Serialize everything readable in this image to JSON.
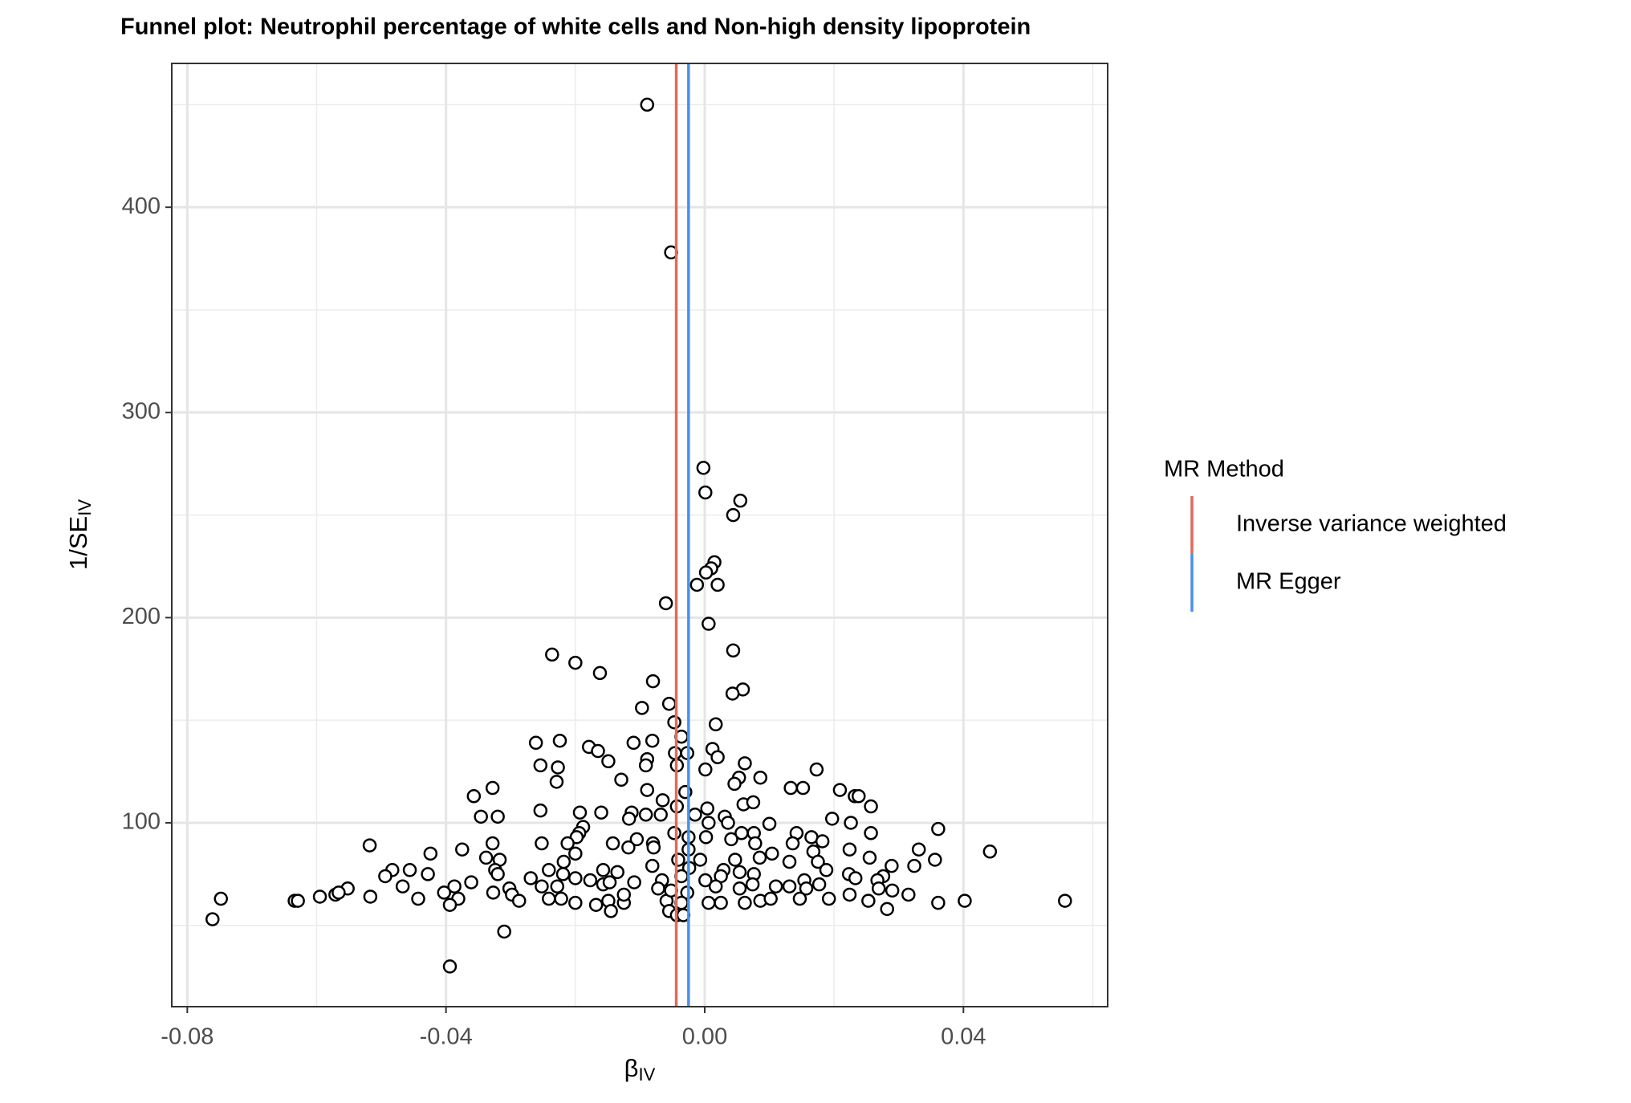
{
  "chart_data": {
    "type": "scatter",
    "title": "Funnel plot: Neutrophil percentage of white cells and Non-high density lipoprotein",
    "xlabel": {
      "text": "β",
      "sub": "IV"
    },
    "ylabel": {
      "text": "1/SE",
      "sub": "IV"
    },
    "xlim": [
      -0.0824,
      0.0623
    ],
    "ylim": [
      10.4,
      470.1
    ],
    "xticks": [
      -0.08,
      -0.04,
      {
        "value": 0,
        "label": "0.00"
      },
      0.04
    ],
    "yticks": [
      100,
      200,
      300,
      400
    ],
    "x_minor_grid": [
      -0.06,
      -0.02,
      0.02,
      0.06
    ],
    "y_minor_grid": [
      50,
      150,
      250,
      350,
      450
    ],
    "grid": true,
    "point_fill": "#ffffff",
    "point_edge": "#000000",
    "legend_title": "MR Method",
    "lines": [
      {
        "name": "Inverse variance weighted",
        "color": "#E06A5C",
        "value": -0.0044
      },
      {
        "name": "MR Egger",
        "color": "#4C8FEA",
        "value": -0.0025
      }
    ],
    "x": [
      -0.0089,
      -0.0052,
      -0.0002,
      0.0001,
      0.0055,
      0.0044,
      0.0015,
      0.001,
      0.0002,
      0.002,
      -0.0012,
      -0.006,
      0.0006,
      0.0044,
      -0.0236,
      -0.02,
      -0.0162,
      -0.008,
      0.0059,
      0.0043,
      -0.0055,
      -0.0097,
      -0.0047,
      0.0017,
      -0.0081,
      -0.0179,
      -0.0261,
      -0.0224,
      -0.0165,
      -0.011,
      -0.0036,
      0.0012,
      -0.0046,
      -0.0027,
      0.002,
      -0.0089,
      -0.0149,
      0.0062,
      -0.0254,
      -0.0227,
      -0.0043,
      0.0001,
      0.0173,
      0.0086,
      -0.0129,
      -0.0229,
      0.0053,
      0.0046,
      0.0133,
      0.0152,
      -0.0328,
      -0.0089,
      -0.003,
      0.0209,
      0.0232,
      0.0238,
      -0.0357,
      -0.0065,
      0.006,
      0.0075,
      -0.0043,
      0.0004,
      0.0257,
      -0.0254,
      -0.0193,
      -0.0113,
      -0.016,
      -0.0346,
      -0.032,
      -0.0091,
      -0.0068,
      -0.0015,
      0.0031,
      0.0036,
      0.0006,
      0.01,
      0.0197,
      0.0226,
      0.0361,
      0.0142,
      0.0257,
      -0.0188,
      -0.0194,
      -0.0198,
      -0.0105,
      -0.0047,
      -0.0025,
      0.0002,
      0.0057,
      0.0076,
      0.0165,
      0.0182,
      -0.0212,
      -0.0252,
      -0.0328,
      -0.0518,
      -0.0142,
      -0.008,
      0.0041,
      0.0078,
      0.0136,
      0.0331,
      0.0224,
      -0.0025,
      -0.0079,
      -0.0118,
      0.0168,
      0.0441,
      -0.0424,
      -0.0375,
      -0.02,
      0.0104,
      0.0085,
      0.0047,
      0.0255,
      0.0356,
      0.0324,
      0.0289,
      -0.0338,
      -0.0317,
      -0.0218,
      -0.0041,
      -0.0007,
      0.0131,
      0.0175,
      0.0188,
      -0.0483,
      -0.0456,
      -0.0324,
      -0.0241,
      -0.0157,
      -0.0135,
      -0.0081,
      -0.0024,
      0.0029,
      0.0054,
      0.0076,
      0.0223,
      0.0276,
      -0.0428,
      -0.032,
      -0.0494,
      -0.0219,
      -0.02,
      -0.0177,
      -0.0269,
      -0.0066,
      -0.0036,
      0.0001,
      0.0025,
      0.0154,
      0.0177,
      0.0233,
      0.0267,
      -0.0361,
      -0.0387,
      -0.0467,
      -0.0403,
      -0.0327,
      -0.0302,
      -0.0252,
      -0.0228,
      -0.0157,
      -0.0109,
      -0.0072,
      -0.0027,
      0.0017,
      0.0054,
      0.0074,
      0.011,
      0.0131,
      0.0157,
      0.0224,
      0.0269,
      0.029,
      0.0315,
      -0.0552,
      -0.0571,
      -0.0566,
      -0.0595,
      -0.0634,
      -0.0629,
      -0.0748,
      -0.0761,
      -0.0517,
      -0.0443,
      -0.0381,
      -0.0298,
      -0.0287,
      -0.0241,
      -0.0222,
      -0.02,
      -0.0168,
      -0.0149,
      -0.0125,
      -0.0059,
      -0.0036,
      0.0006,
      0.0025,
      0.0062,
      0.0086,
      0.0102,
      0.0147,
      0.0192,
      0.0253,
      0.0282,
      0.0361,
      0.0402,
      0.0557,
      -0.0394,
      -0.031,
      -0.0394,
      -0.0145,
      -0.0055,
      -0.0043,
      -0.0033,
      -0.0052,
      -0.0125,
      -0.0147,
      -0.0091,
      -0.0117
    ],
    "y": [
      450,
      378,
      273,
      261,
      257,
      250,
      227,
      224,
      222,
      216,
      216,
      207,
      197,
      184,
      182,
      178,
      173,
      169,
      165,
      163,
      158,
      156,
      149,
      148,
      140,
      137,
      139,
      140,
      135,
      139,
      142,
      136,
      134,
      134,
      132,
      131,
      130,
      129,
      128,
      127,
      128,
      126,
      126,
      122,
      121,
      120,
      122,
      119,
      117,
      117,
      117,
      116,
      115,
      116,
      113,
      113,
      113,
      111,
      109,
      110,
      108,
      107,
      108,
      106,
      105,
      105,
      105,
      103,
      103,
      104,
      104,
      104,
      103,
      100,
      100,
      99.5,
      102,
      100,
      97,
      95,
      95,
      98,
      95,
      93,
      92,
      95,
      93,
      93,
      95,
      95,
      93,
      91,
      90,
      90,
      90,
      89,
      90,
      90,
      92,
      90,
      90,
      87,
      87,
      87,
      88,
      88,
      86,
      86,
      85,
      87,
      85,
      85,
      83,
      82,
      83,
      82,
      79,
      79,
      83,
      82,
      81,
      82,
      82,
      81,
      81,
      77,
      77,
      77,
      77,
      77,
      77,
      76,
      79,
      78,
      77,
      76,
      75,
      75,
      74,
      75,
      75,
      74,
      75,
      73,
      72,
      73,
      72,
      74,
      72,
      74,
      72,
      70,
      73,
      72,
      71,
      69,
      69,
      66,
      66,
      68,
      69,
      69,
      70,
      71,
      68,
      66,
      69,
      68,
      70,
      69,
      69,
      68,
      65,
      68,
      67,
      65,
      68,
      65,
      66,
      64,
      62,
      62,
      63,
      53,
      64,
      63,
      63,
      65,
      62,
      63,
      63,
      61,
      60,
      62,
      61,
      62,
      61,
      61,
      61,
      61,
      62,
      63,
      63,
      63,
      62,
      58,
      61,
      62,
      62,
      60,
      47,
      30,
      57,
      57,
      55,
      55,
      67,
      65,
      71,
      128,
      102
    ]
  }
}
